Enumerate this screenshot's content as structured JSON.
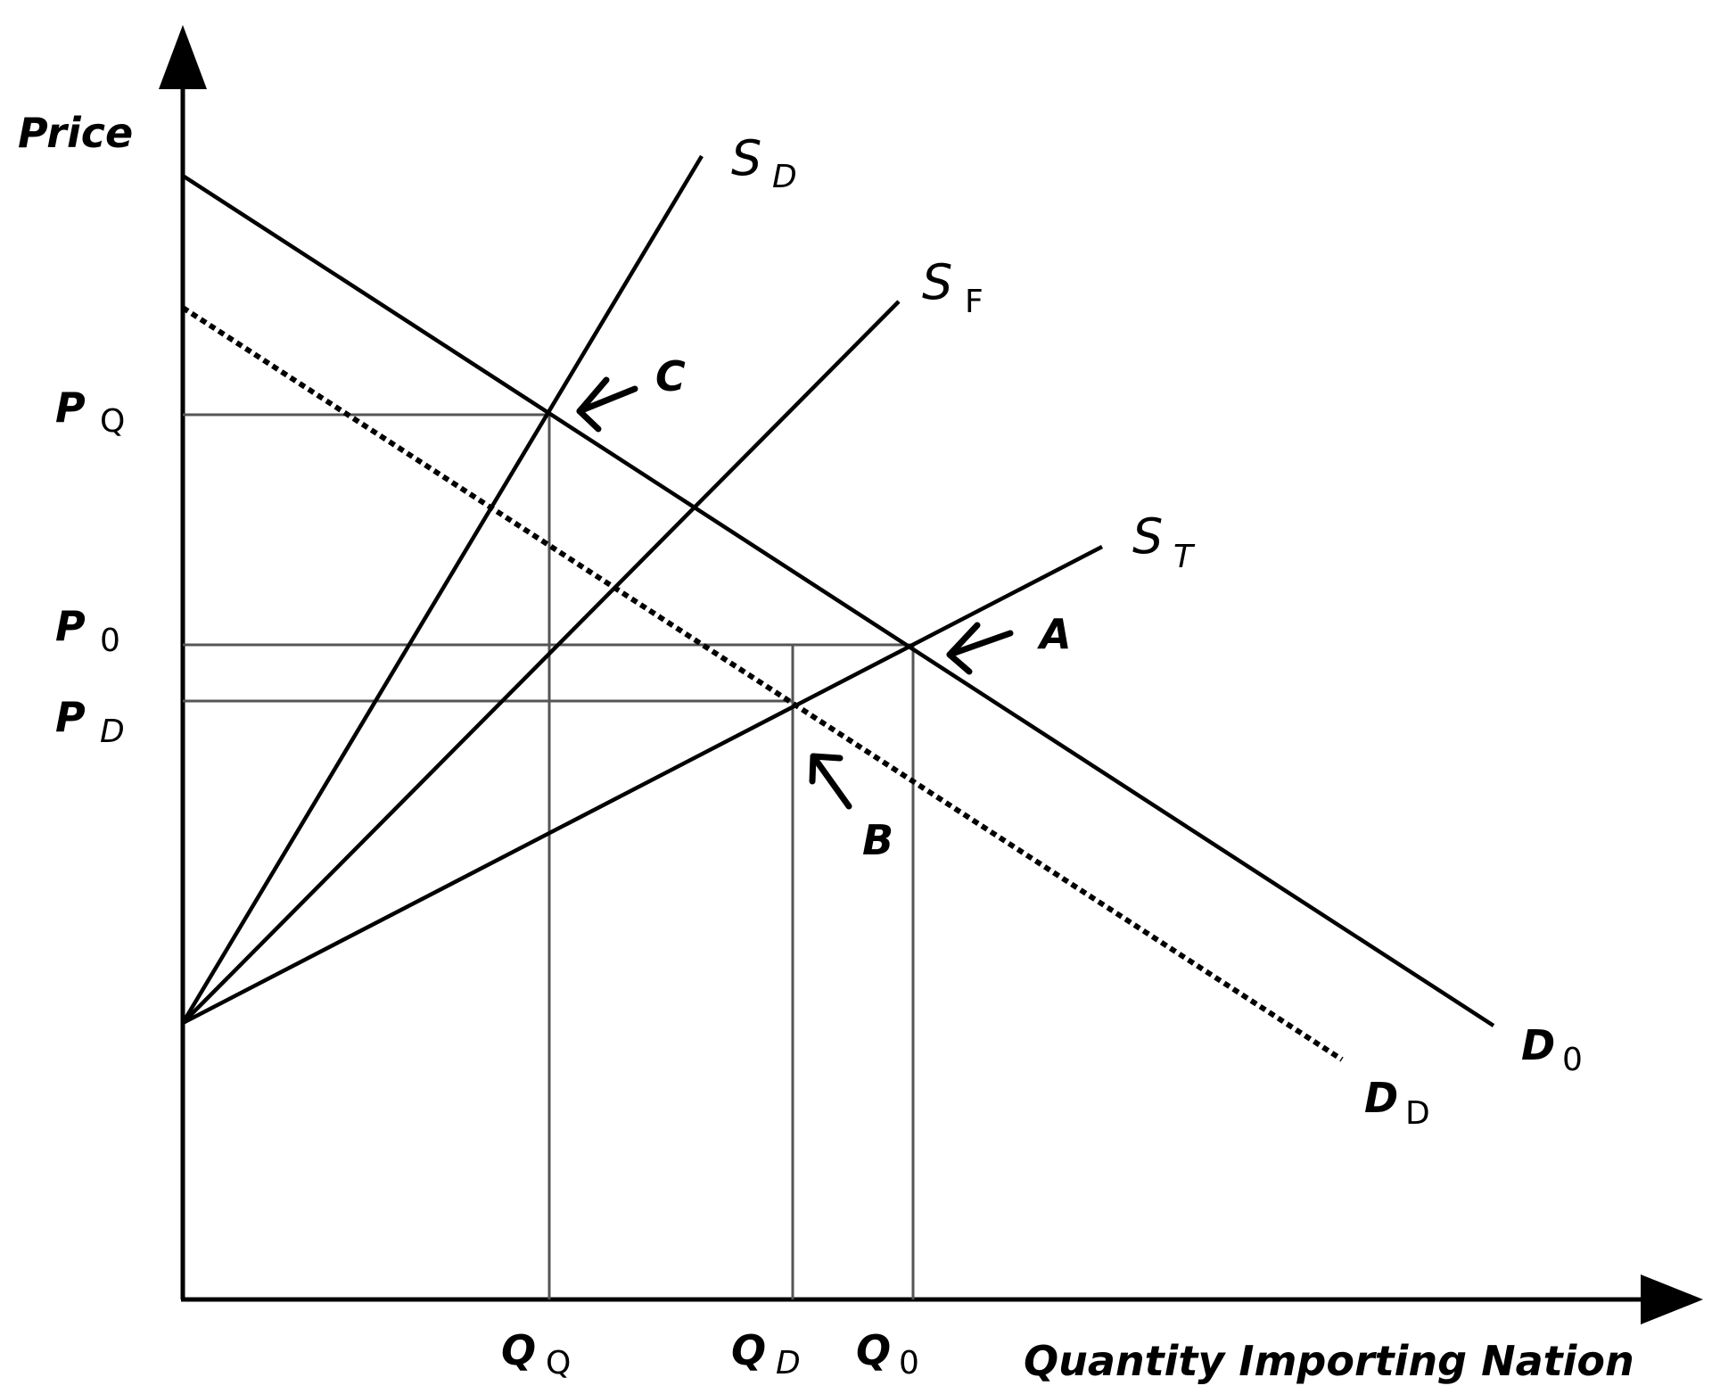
{
  "axes": {
    "y_label": "Price",
    "x_label": "Quantity Importing Nation"
  },
  "curves": {
    "sd": {
      "main": "S",
      "sub": "D"
    },
    "sf": {
      "main": "S",
      "sub": "F"
    },
    "st": {
      "main": "S",
      "sub": "T"
    },
    "d0": {
      "main": "D",
      "sub": "0"
    },
    "dd": {
      "main": "D",
      "sub": "D"
    }
  },
  "prices": {
    "pq": {
      "main": "P",
      "sub": "Q"
    },
    "p0": {
      "main": "P",
      "sub": "0"
    },
    "pd": {
      "main": "P",
      "sub": "D"
    }
  },
  "quantities": {
    "qq": {
      "main": "Q",
      "sub": "Q"
    },
    "qd": {
      "main": "Q",
      "sub": "D"
    },
    "q0": {
      "main": "Q",
      "sub": "0"
    }
  },
  "points": {
    "a": "A",
    "b": "B",
    "c": "C"
  },
  "colors": {
    "line": "#000000",
    "guide": "#555555"
  }
}
